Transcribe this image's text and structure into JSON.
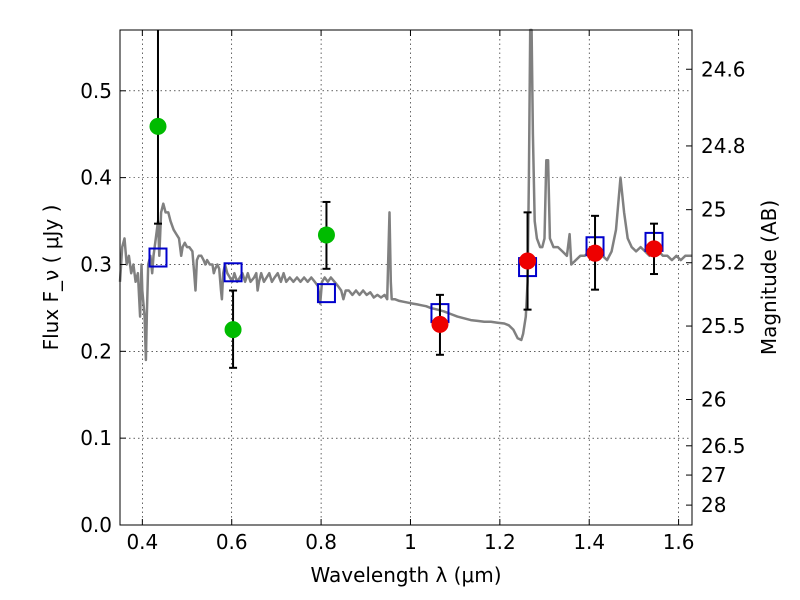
{
  "chart_data": {
    "type": "scatter",
    "xlabel": "Wavelength λ (μm)",
    "ylabel": "Flux F_ν ( μJy )",
    "y2label": "Magnitude (AB)",
    "xlim": [
      0.35,
      1.63
    ],
    "ylim": [
      0.0,
      0.57
    ],
    "x_ticks": [
      0.4,
      0.6,
      0.8,
      1.0,
      1.2,
      1.4,
      1.6
    ],
    "x_tick_labels": [
      "0.4",
      "0.6",
      "0.8",
      "1",
      "1.2",
      "1.4",
      "1.6"
    ],
    "y_ticks": [
      0.0,
      0.1,
      0.2,
      0.3,
      0.4,
      0.5
    ],
    "y_tick_labels": [
      "0.0",
      "0.1",
      "0.2",
      "0.3",
      "0.4",
      "0.5"
    ],
    "y2_ticks": [
      {
        "label": "24.6",
        "flux": 0.5248
      },
      {
        "label": "24.8",
        "flux": 0.4365
      },
      {
        "label": "25",
        "flux": 0.3631
      },
      {
        "label": "25.2",
        "flux": 0.302
      },
      {
        "label": "25.5",
        "flux": 0.2291
      },
      {
        "label": "26",
        "flux": 0.1445
      },
      {
        "label": "26.5",
        "flux": 0.0912
      },
      {
        "label": "27",
        "flux": 0.0575
      },
      {
        "label": "28",
        "flux": 0.0229
      }
    ],
    "grid": true,
    "colors": {
      "template": "#808080",
      "model": "#0000cc",
      "green": "#00bb00",
      "red": "#ee0000",
      "errorbar": "#000000"
    },
    "template_spectrum": [
      [
        0.35,
        0.28
      ],
      [
        0.355,
        0.32
      ],
      [
        0.36,
        0.33
      ],
      [
        0.365,
        0.3
      ],
      [
        0.37,
        0.31
      ],
      [
        0.375,
        0.29
      ],
      [
        0.38,
        0.3
      ],
      [
        0.385,
        0.28
      ],
      [
        0.39,
        0.29
      ],
      [
        0.395,
        0.24
      ],
      [
        0.398,
        0.3
      ],
      [
        0.4,
        0.27
      ],
      [
        0.405,
        0.24
      ],
      [
        0.408,
        0.19
      ],
      [
        0.41,
        0.24
      ],
      [
        0.413,
        0.3
      ],
      [
        0.418,
        0.31
      ],
      [
        0.422,
        0.29
      ],
      [
        0.425,
        0.31
      ],
      [
        0.43,
        0.33
      ],
      [
        0.435,
        0.35
      ],
      [
        0.438,
        0.31
      ],
      [
        0.442,
        0.36
      ],
      [
        0.447,
        0.37
      ],
      [
        0.452,
        0.36
      ],
      [
        0.458,
        0.36
      ],
      [
        0.463,
        0.35
      ],
      [
        0.47,
        0.34
      ],
      [
        0.476,
        0.335
      ],
      [
        0.482,
        0.33
      ],
      [
        0.487,
        0.31
      ],
      [
        0.49,
        0.32
      ],
      [
        0.495,
        0.325
      ],
      [
        0.5,
        0.32
      ],
      [
        0.505,
        0.32
      ],
      [
        0.512,
        0.315
      ],
      [
        0.516,
        0.29
      ],
      [
        0.519,
        0.27
      ],
      [
        0.522,
        0.305
      ],
      [
        0.526,
        0.31
      ],
      [
        0.532,
        0.31
      ],
      [
        0.537,
        0.305
      ],
      [
        0.541,
        0.3
      ],
      [
        0.545,
        0.305
      ],
      [
        0.551,
        0.3
      ],
      [
        0.557,
        0.3
      ],
      [
        0.56,
        0.29
      ],
      [
        0.563,
        0.295
      ],
      [
        0.568,
        0.3
      ],
      [
        0.572,
        0.295
      ],
      [
        0.576,
        0.27
      ],
      [
        0.578,
        0.26
      ],
      [
        0.581,
        0.29
      ],
      [
        0.585,
        0.3
      ],
      [
        0.59,
        0.29
      ],
      [
        0.596,
        0.285
      ],
      [
        0.601,
        0.28
      ],
      [
        0.606,
        0.29
      ],
      [
        0.612,
        0.28
      ],
      [
        0.618,
        0.285
      ],
      [
        0.624,
        0.29
      ],
      [
        0.63,
        0.28
      ],
      [
        0.636,
        0.29
      ],
      [
        0.642,
        0.28
      ],
      [
        0.65,
        0.285
      ],
      [
        0.655,
        0.29
      ],
      [
        0.658,
        0.27
      ],
      [
        0.661,
        0.28
      ],
      [
        0.666,
        0.29
      ],
      [
        0.672,
        0.28
      ],
      [
        0.678,
        0.285
      ],
      [
        0.684,
        0.29
      ],
      [
        0.69,
        0.28
      ],
      [
        0.696,
        0.285
      ],
      [
        0.703,
        0.29
      ],
      [
        0.71,
        0.28
      ],
      [
        0.716,
        0.29
      ],
      [
        0.722,
        0.28
      ],
      [
        0.73,
        0.285
      ],
      [
        0.738,
        0.28
      ],
      [
        0.746,
        0.285
      ],
      [
        0.754,
        0.28
      ],
      [
        0.762,
        0.285
      ],
      [
        0.77,
        0.28
      ],
      [
        0.778,
        0.285
      ],
      [
        0.786,
        0.28
      ],
      [
        0.793,
        0.275
      ],
      [
        0.798,
        0.255
      ],
      [
        0.802,
        0.28
      ],
      [
        0.808,
        0.285
      ],
      [
        0.815,
        0.28
      ],
      [
        0.822,
        0.285
      ],
      [
        0.83,
        0.28
      ],
      [
        0.838,
        0.275
      ],
      [
        0.845,
        0.27
      ],
      [
        0.85,
        0.26
      ],
      [
        0.855,
        0.27
      ],
      [
        0.862,
        0.27
      ],
      [
        0.87,
        0.265
      ],
      [
        0.878,
        0.27
      ],
      [
        0.886,
        0.265
      ],
      [
        0.894,
        0.27
      ],
      [
        0.902,
        0.265
      ],
      [
        0.91,
        0.268
      ],
      [
        0.918,
        0.262
      ],
      [
        0.926,
        0.265
      ],
      [
        0.934,
        0.262
      ],
      [
        0.942,
        0.265
      ],
      [
        0.948,
        0.26
      ],
      [
        0.95,
        0.3
      ],
      [
        0.953,
        0.36
      ],
      [
        0.956,
        0.28
      ],
      [
        0.958,
        0.26
      ],
      [
        0.965,
        0.26
      ],
      [
        0.975,
        0.258
      ],
      [
        0.985,
        0.257
      ],
      [
        0.995,
        0.256
      ],
      [
        1.005,
        0.255
      ],
      [
        1.015,
        0.254
      ],
      [
        1.025,
        0.253
      ],
      [
        1.035,
        0.252
      ],
      [
        1.045,
        0.25
      ],
      [
        1.06,
        0.248
      ],
      [
        1.075,
        0.246
      ],
      [
        1.09,
        0.243
      ],
      [
        1.105,
        0.24
      ],
      [
        1.12,
        0.238
      ],
      [
        1.135,
        0.236
      ],
      [
        1.15,
        0.235
      ],
      [
        1.165,
        0.234
      ],
      [
        1.18,
        0.234
      ],
      [
        1.195,
        0.233
      ],
      [
        1.21,
        0.232
      ],
      [
        1.22,
        0.23
      ],
      [
        1.23,
        0.225
      ],
      [
        1.24,
        0.215
      ],
      [
        1.248,
        0.213
      ],
      [
        1.252,
        0.22
      ],
      [
        1.258,
        0.24
      ],
      [
        1.262,
        0.28
      ],
      [
        1.265,
        0.4
      ],
      [
        1.268,
        0.57
      ],
      [
        1.271,
        0.57
      ],
      [
        1.274,
        0.45
      ],
      [
        1.278,
        0.35
      ],
      [
        1.283,
        0.33
      ],
      [
        1.29,
        0.32
      ],
      [
        1.295,
        0.32
      ],
      [
        1.3,
        0.33
      ],
      [
        1.304,
        0.42
      ],
      [
        1.308,
        0.42
      ],
      [
        1.312,
        0.33
      ],
      [
        1.32,
        0.32
      ],
      [
        1.33,
        0.32
      ],
      [
        1.34,
        0.315
      ],
      [
        1.35,
        0.31
      ],
      [
        1.356,
        0.335
      ],
      [
        1.36,
        0.3
      ],
      [
        1.37,
        0.305
      ],
      [
        1.38,
        0.31
      ],
      [
        1.39,
        0.31
      ],
      [
        1.4,
        0.315
      ],
      [
        1.41,
        0.312
      ],
      [
        1.42,
        0.31
      ],
      [
        1.43,
        0.31
      ],
      [
        1.44,
        0.305
      ],
      [
        1.45,
        0.315
      ],
      [
        1.46,
        0.34
      ],
      [
        1.47,
        0.4
      ],
      [
        1.478,
        0.36
      ],
      [
        1.486,
        0.33
      ],
      [
        1.495,
        0.32
      ],
      [
        1.505,
        0.315
      ],
      [
        1.515,
        0.32
      ],
      [
        1.525,
        0.315
      ],
      [
        1.535,
        0.31
      ],
      [
        1.545,
        0.32
      ],
      [
        1.555,
        0.315
      ],
      [
        1.565,
        0.31
      ],
      [
        1.575,
        0.31
      ],
      [
        1.585,
        0.305
      ],
      [
        1.595,
        0.31
      ],
      [
        1.605,
        0.305
      ],
      [
        1.615,
        0.31
      ],
      [
        1.63,
        0.31
      ]
    ],
    "model_points": [
      {
        "x": 0.435,
        "y": 0.308
      },
      {
        "x": 0.603,
        "y": 0.291
      },
      {
        "x": 0.812,
        "y": 0.267
      },
      {
        "x": 1.066,
        "y": 0.244
      },
      {
        "x": 1.262,
        "y": 0.297
      },
      {
        "x": 1.413,
        "y": 0.321
      },
      {
        "x": 1.545,
        "y": 0.326
      }
    ],
    "observed_points": [
      {
        "x": 0.435,
        "y": 0.459,
        "err_lo": 0.112,
        "err_hi": 0.13,
        "color": "green"
      },
      {
        "x": 0.603,
        "y": 0.225,
        "err_lo": 0.044,
        "err_hi": 0.045,
        "color": "green"
      },
      {
        "x": 0.812,
        "y": 0.334,
        "err_lo": 0.039,
        "err_hi": 0.038,
        "color": "green"
      },
      {
        "x": 1.066,
        "y": 0.231,
        "err_lo": 0.035,
        "err_hi": 0.034,
        "color": "red"
      },
      {
        "x": 1.262,
        "y": 0.304,
        "err_lo": 0.056,
        "err_hi": 0.056,
        "color": "red"
      },
      {
        "x": 1.413,
        "y": 0.313,
        "err_lo": 0.042,
        "err_hi": 0.043,
        "color": "red"
      },
      {
        "x": 1.545,
        "y": 0.318,
        "err_lo": 0.029,
        "err_hi": 0.029,
        "color": "red"
      }
    ]
  }
}
